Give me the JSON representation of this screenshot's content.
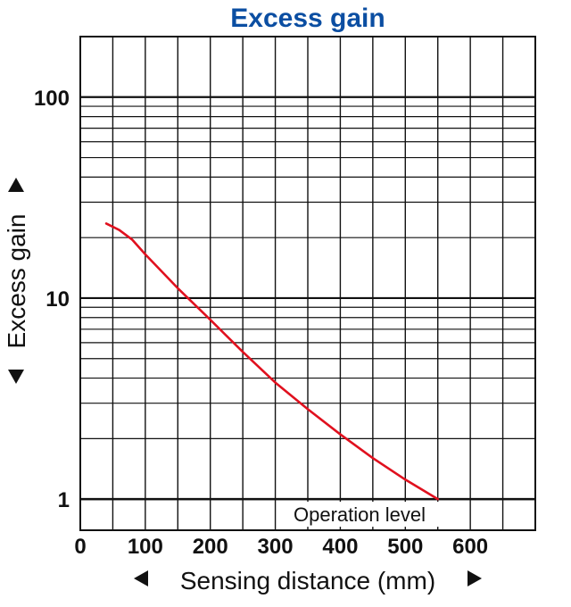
{
  "chart_data": {
    "type": "line",
    "title": "Excess gain",
    "xlabel": "Sensing distance (mm)",
    "ylabel": "Excess gain",
    "xlim": [
      0,
      700
    ],
    "ylim": [
      0.7,
      200
    ],
    "yscale": "log",
    "xticks": [
      "0",
      "100",
      "200",
      "300",
      "400",
      "500",
      "600"
    ],
    "xtick_values": [
      0,
      100,
      200,
      300,
      400,
      500,
      600
    ],
    "yticks": [
      "1",
      "10",
      "100"
    ],
    "ytick_values": [
      1,
      10,
      100
    ],
    "grid": true,
    "series": [
      {
        "color": "#e0101e",
        "x": [
          40,
          60,
          80,
          100,
          150,
          200,
          250,
          300,
          350,
          400,
          450,
          500,
          550
        ],
        "y": [
          23.5,
          21.8,
          19.5,
          16.5,
          11.2,
          7.8,
          5.4,
          3.8,
          2.8,
          2.1,
          1.6,
          1.25,
          1.0
        ]
      }
    ],
    "reference_lines": [
      {
        "y": 1,
        "label": "Operation level",
        "color": "#111111"
      }
    ]
  }
}
